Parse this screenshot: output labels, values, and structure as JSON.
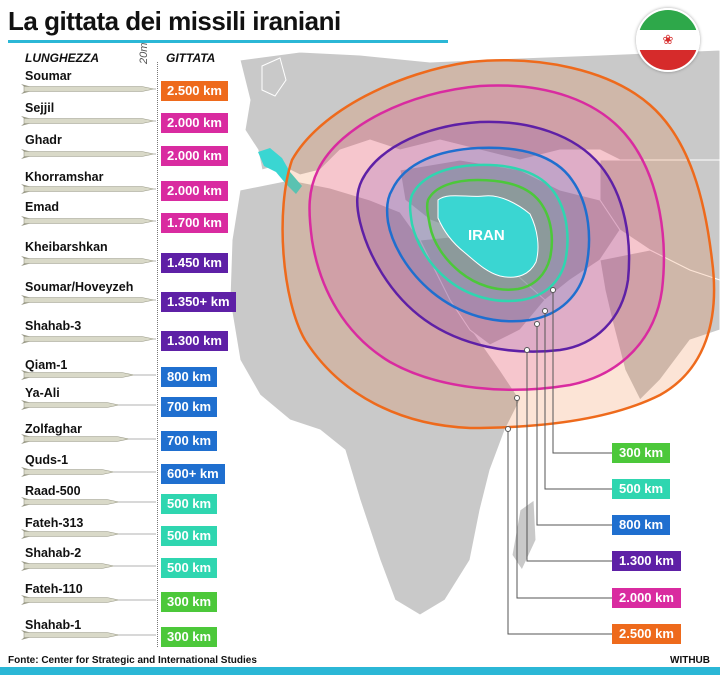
{
  "title": "La gittata dei missili iraniani",
  "headers": {
    "length": "LUNGHEZZA",
    "range": "GITTATA",
    "scale": "20m"
  },
  "missiles": [
    {
      "name": "Soumar",
      "range": "2.500 km",
      "color": "#ee6a1c"
    },
    {
      "name": "Sejjil",
      "range": "2.000 km",
      "color": "#d92ba0"
    },
    {
      "name": "Ghadr",
      "range": "2.000 km",
      "color": "#d92ba0"
    },
    {
      "name": "Khorramshar",
      "range": "2.000 km",
      "color": "#d92ba0"
    },
    {
      "name": "Emad",
      "range": "1.700 km",
      "color": "#d92ba0"
    },
    {
      "name": "Kheibarshkan",
      "range": "1.450 km",
      "color": "#5e20a6"
    },
    {
      "name": "Soumar/Hoveyzeh",
      "range": "1.350+ km",
      "color": "#5e20a6"
    },
    {
      "name": "Shahab-3",
      "range": "1.300 km",
      "color": "#5e20a6"
    },
    {
      "name": "Qiam-1",
      "range": "800 km",
      "color": "#1f6fcf"
    },
    {
      "name": "Ya-Ali",
      "range": "700 km",
      "color": "#1f6fcf"
    },
    {
      "name": "Zolfaghar",
      "range": "700 km",
      "color": "#1f6fcf"
    },
    {
      "name": "Quds-1",
      "range": "600+ km",
      "color": "#1f6fcf"
    },
    {
      "name": "Raad-500",
      "range": "500 km",
      "color": "#2fd6b0"
    },
    {
      "name": "Fateh-313",
      "range": "500 km",
      "color": "#2fd6b0"
    },
    {
      "name": "Shahab-2",
      "range": "500 km",
      "color": "#2fd6b0"
    },
    {
      "name": "Fateh-110",
      "range": "300 km",
      "color": "#4cc83a"
    },
    {
      "name": "Shahab-1",
      "range": "300 km",
      "color": "#4cc83a"
    }
  ],
  "range_rings": [
    {
      "label": "300 km",
      "color": "#4cc83a"
    },
    {
      "label": "500 km",
      "color": "#2fd6b0"
    },
    {
      "label": "800 km",
      "color": "#1f6fcf"
    },
    {
      "label": "1.300 km",
      "color": "#5e20a6"
    },
    {
      "label": "2.000 km",
      "color": "#d92ba0"
    },
    {
      "label": "2.500 km",
      "color": "#ee6a1c"
    }
  ],
  "map": {
    "country_label": "IRAN",
    "iran_color": "#3ad6d2",
    "land_color": "#c9c9c9",
    "water_color": "#ffffff"
  },
  "footer": {
    "source": "Fonte: Center for Strategic and International Studies",
    "brand": "WITHUB"
  },
  "flag": {
    "emblem_icon": "iran-emblem-icon"
  }
}
